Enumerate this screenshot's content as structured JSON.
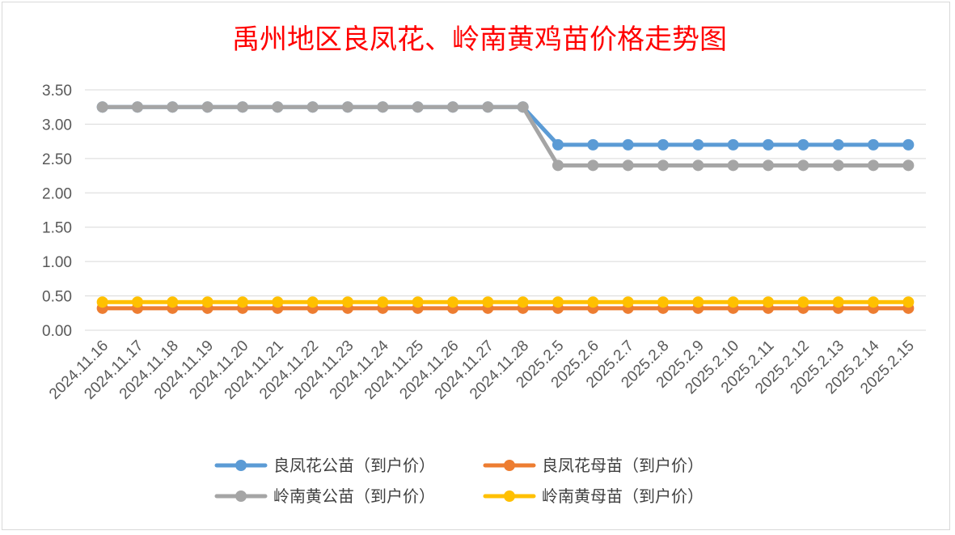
{
  "chart_data": {
    "type": "line",
    "title": "禹州地区良凤花、岭南黄鸡苗价格走势图",
    "xlabel": "",
    "ylabel": "",
    "ylim": [
      0,
      3.5
    ],
    "yticks": [
      "0.00",
      "0.50",
      "1.00",
      "1.50",
      "2.00",
      "2.50",
      "3.00",
      "3.50"
    ],
    "grid": true,
    "legend_position": "bottom",
    "categories": [
      "2024.11.16",
      "2024.11.17",
      "2024.11.18",
      "2024.11.19",
      "2024.11.20",
      "2024.11.21",
      "2024.11.22",
      "2024.11.23",
      "2024.11.24",
      "2024.11.25",
      "2024.11.26",
      "2024.11.27",
      "2024.11.28",
      "2025.2.5",
      "2025.2.6",
      "2025.2.7",
      "2025.2.8",
      "2025.2.9",
      "2025.2.10",
      "2025.2.11",
      "2025.2.12",
      "2025.2.13",
      "2025.2.14",
      "2025.2.15"
    ],
    "series": [
      {
        "name": "良凤花公苗（到户价）",
        "color": "#5b9bd5",
        "values": [
          3.25,
          3.25,
          3.25,
          3.25,
          3.25,
          3.25,
          3.25,
          3.25,
          3.25,
          3.25,
          3.25,
          3.25,
          3.25,
          2.7,
          2.7,
          2.7,
          2.7,
          2.7,
          2.7,
          2.7,
          2.7,
          2.7,
          2.7,
          2.7
        ]
      },
      {
        "name": "良凤花母苗（到户价）",
        "color": "#ed7d31",
        "values": [
          0.32,
          0.32,
          0.32,
          0.32,
          0.32,
          0.32,
          0.32,
          0.32,
          0.32,
          0.32,
          0.32,
          0.32,
          0.32,
          0.32,
          0.32,
          0.32,
          0.32,
          0.32,
          0.32,
          0.32,
          0.32,
          0.32,
          0.32,
          0.32
        ]
      },
      {
        "name": "岭南黄公苗（到户价）",
        "color": "#a5a5a5",
        "values": [
          3.25,
          3.25,
          3.25,
          3.25,
          3.25,
          3.25,
          3.25,
          3.25,
          3.25,
          3.25,
          3.25,
          3.25,
          3.25,
          2.4,
          2.4,
          2.4,
          2.4,
          2.4,
          2.4,
          2.4,
          2.4,
          2.4,
          2.4,
          2.4
        ]
      },
      {
        "name": "岭南黄母苗（到户价）",
        "color": "#ffc000",
        "values": [
          0.41,
          0.41,
          0.41,
          0.41,
          0.41,
          0.41,
          0.41,
          0.41,
          0.41,
          0.41,
          0.41,
          0.41,
          0.41,
          0.41,
          0.41,
          0.41,
          0.41,
          0.41,
          0.41,
          0.41,
          0.41,
          0.41,
          0.41,
          0.41
        ]
      }
    ],
    "draw_order": [
      0,
      2,
      1,
      3
    ],
    "legend_order": [
      0,
      1,
      2,
      3
    ]
  }
}
